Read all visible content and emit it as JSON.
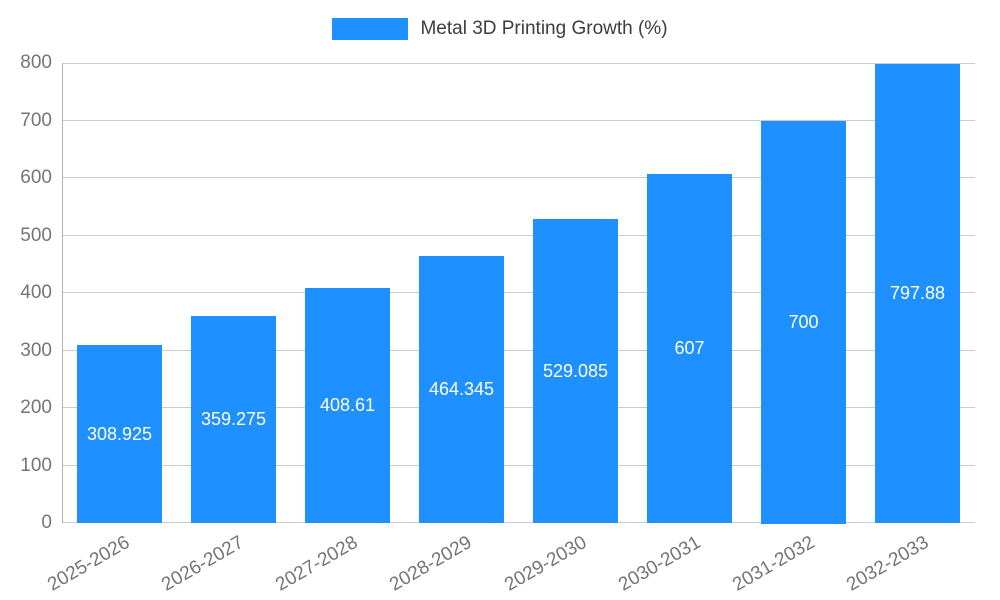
{
  "chart_data": {
    "type": "bar",
    "title": "Metal 3D Printing Growth (%)",
    "categories": [
      "2025-2026",
      "2026-2027",
      "2027-2028",
      "2028-2029",
      "2029-2030",
      "2030-2031",
      "2031-2032",
      "2032-2033"
    ],
    "values": [
      308.925,
      359.275,
      408.61,
      464.345,
      529.085,
      607,
      700,
      797.88
    ],
    "value_labels": [
      "308.925",
      "359.275",
      "408.61",
      "464.345",
      "529.085",
      "607",
      "700",
      "797.88"
    ],
    "xlabel": "",
    "ylabel": "",
    "ylim": [
      0,
      800
    ],
    "yticks": [
      0,
      100,
      200,
      300,
      400,
      500,
      600,
      700,
      800
    ],
    "grid": true,
    "legend_position": "top",
    "x_label_rotation": -30,
    "colors": {
      "bar": "#1e90ff",
      "bar_label": "#ffffff",
      "axis_text": "#757575",
      "legend_text": "#3d3d3d",
      "gridline": "#cccccc",
      "axis_line": "#b3b3b3",
      "background": "#ffffff"
    }
  }
}
